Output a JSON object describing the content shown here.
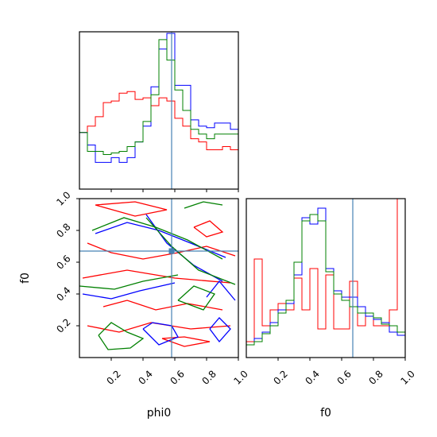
{
  "chart_data": {
    "type": "corner",
    "parameters": [
      "phi0",
      "f0"
    ],
    "truths": {
      "phi0": 0.58,
      "f0": 0.67
    },
    "truth_color": "#4682b4",
    "series": [
      {
        "color": "#0000ff"
      },
      {
        "color": "#008000"
      },
      {
        "color": "#ff0000"
      }
    ],
    "hist_phi0": {
      "range": [
        0,
        1
      ],
      "bins": 20,
      "values": {
        "blue": [
          0.36,
          0.28,
          0.17,
          0.17,
          0.2,
          0.17,
          0.2,
          0.3,
          0.4,
          0.65,
          0.89,
          0.99,
          0.66,
          0.66,
          0.44,
          0.4,
          0.39,
          0.42,
          0.42,
          0.38
        ],
        "green": [
          0.36,
          0.24,
          0.24,
          0.22,
          0.23,
          0.24,
          0.27,
          0.3,
          0.43,
          0.6,
          0.95,
          0.82,
          0.63,
          0.5,
          0.38,
          0.35,
          0.32,
          0.35,
          0.35,
          0.35
        ],
        "red": [
          0.36,
          0.4,
          0.46,
          0.55,
          0.56,
          0.61,
          0.62,
          0.57,
          0.58,
          0.53,
          0.58,
          0.56,
          0.45,
          0.4,
          0.32,
          0.3,
          0.25,
          0.25,
          0.27,
          0.25
        ]
      }
    },
    "hist_f0": {
      "range": [
        0,
        1
      ],
      "bins": 20,
      "values": {
        "blue": [
          0.08,
          0.12,
          0.16,
          0.22,
          0.3,
          0.34,
          0.52,
          0.88,
          0.84,
          0.94,
          0.56,
          0.42,
          0.38,
          0.38,
          0.32,
          0.26,
          0.24,
          0.22,
          0.16,
          0.14
        ],
        "green": [
          0.08,
          0.1,
          0.15,
          0.2,
          0.28,
          0.36,
          0.6,
          0.86,
          0.9,
          0.86,
          0.54,
          0.4,
          0.36,
          0.32,
          0.28,
          0.28,
          0.25,
          0.21,
          0.2,
          0.16
        ],
        "red": [
          0.1,
          0.62,
          0.2,
          0.3,
          0.34,
          0.3,
          0.5,
          0.3,
          0.56,
          0.18,
          0.52,
          0.18,
          0.18,
          0.48,
          0.2,
          0.26,
          0.2,
          0.2,
          0.3,
          1.0
        ]
      }
    },
    "contours": {
      "x_range": [
        0,
        1
      ],
      "y_range": [
        0,
        1
      ],
      "blue": [
        [
          [
            0.1,
            0.78
          ],
          [
            0.3,
            0.85
          ],
          [
            0.5,
            0.8
          ],
          [
            0.7,
            0.72
          ],
          [
            0.92,
            0.63
          ]
        ],
        [
          [
            0.42,
            0.9
          ],
          [
            0.55,
            0.72
          ],
          [
            0.72,
            0.58
          ],
          [
            0.9,
            0.48
          ]
        ],
        [
          [
            0.02,
            0.4
          ],
          [
            0.2,
            0.37
          ],
          [
            0.38,
            0.42
          ],
          [
            0.6,
            0.47
          ]
        ],
        [
          [
            0.4,
            0.18
          ],
          [
            0.5,
            0.08
          ],
          [
            0.62,
            0.13
          ],
          [
            0.58,
            0.2
          ],
          [
            0.46,
            0.22
          ],
          [
            0.4,
            0.18
          ]
        ],
        [
          [
            0.82,
            0.18
          ],
          [
            0.88,
            0.25
          ],
          [
            0.95,
            0.18
          ],
          [
            0.88,
            0.1
          ],
          [
            0.82,
            0.18
          ]
        ],
        [
          [
            0.8,
            0.38
          ],
          [
            0.88,
            0.48
          ],
          [
            0.98,
            0.36
          ]
        ]
      ],
      "green": [
        [
          [
            0.08,
            0.8
          ],
          [
            0.28,
            0.88
          ],
          [
            0.48,
            0.82
          ],
          [
            0.68,
            0.74
          ],
          [
            0.9,
            0.62
          ]
        ],
        [
          [
            0.42,
            0.88
          ],
          [
            0.58,
            0.7
          ],
          [
            0.75,
            0.55
          ],
          [
            0.98,
            0.46
          ]
        ],
        [
          [
            0.0,
            0.45
          ],
          [
            0.22,
            0.43
          ],
          [
            0.4,
            0.48
          ],
          [
            0.62,
            0.52
          ]
        ],
        [
          [
            0.12,
            0.14
          ],
          [
            0.2,
            0.22
          ],
          [
            0.3,
            0.16
          ],
          [
            0.4,
            0.12
          ],
          [
            0.32,
            0.06
          ],
          [
            0.18,
            0.05
          ],
          [
            0.12,
            0.14
          ]
        ],
        [
          [
            0.62,
            0.36
          ],
          [
            0.72,
            0.45
          ],
          [
            0.85,
            0.4
          ],
          [
            0.78,
            0.3
          ],
          [
            0.62,
            0.36
          ]
        ],
        [
          [
            0.66,
            0.94
          ],
          [
            0.78,
            0.98
          ],
          [
            0.9,
            0.96
          ]
        ]
      ],
      "red": [
        [
          [
            0.1,
            0.96
          ],
          [
            0.35,
            0.98
          ],
          [
            0.55,
            0.93
          ],
          [
            0.35,
            0.89
          ],
          [
            0.1,
            0.96
          ]
        ],
        [
          [
            0.02,
            0.5
          ],
          [
            0.3,
            0.55
          ],
          [
            0.6,
            0.5
          ],
          [
            0.95,
            0.47
          ]
        ],
        [
          [
            0.05,
            0.72
          ],
          [
            0.2,
            0.66
          ],
          [
            0.4,
            0.62
          ],
          [
            0.62,
            0.66
          ],
          [
            0.8,
            0.7
          ],
          [
            0.98,
            0.64
          ]
        ],
        [
          [
            0.05,
            0.2
          ],
          [
            0.25,
            0.16
          ],
          [
            0.45,
            0.22
          ],
          [
            0.7,
            0.18
          ],
          [
            0.95,
            0.2
          ]
        ],
        [
          [
            0.15,
            0.32
          ],
          [
            0.3,
            0.36
          ],
          [
            0.48,
            0.3
          ],
          [
            0.68,
            0.34
          ],
          [
            0.9,
            0.3
          ]
        ],
        [
          [
            0.52,
            0.12
          ],
          [
            0.66,
            0.07
          ],
          [
            0.82,
            0.1
          ],
          [
            0.66,
            0.13
          ],
          [
            0.52,
            0.12
          ]
        ],
        [
          [
            0.72,
            0.82
          ],
          [
            0.82,
            0.86
          ],
          [
            0.9,
            0.79
          ],
          [
            0.8,
            0.76
          ],
          [
            0.72,
            0.82
          ]
        ]
      ]
    },
    "phi0_axis": {
      "label": "phi0",
      "ticks": [
        "0.2",
        "0.4",
        "0.6",
        "0.8",
        "1.0"
      ]
    },
    "f0_axis_y": {
      "label": "f0",
      "ticks": [
        "0.2",
        "0.4",
        "0.6",
        "0.8",
        "1.0"
      ]
    },
    "f0_axis_x": {
      "label": "f0",
      "ticks": [
        "0.2",
        "0.4",
        "0.6",
        "0.8",
        "1.0"
      ]
    }
  }
}
